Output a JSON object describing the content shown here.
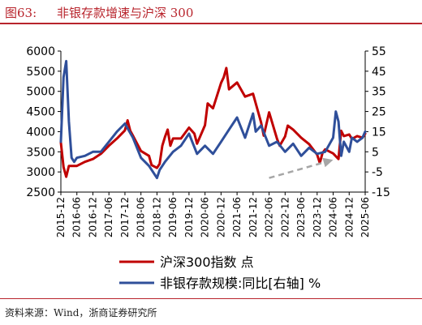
{
  "header": {
    "figure_label": "图63:",
    "title": "非银存款增速与沪深 300"
  },
  "footer": {
    "source": "资料来源：Wind，浙商证券研究所"
  },
  "colors": {
    "accent": "#b8242c",
    "series_red": "#c00000",
    "series_blue": "#2f4f9a",
    "arrow": "#a6a6a6"
  },
  "chart_data": {
    "type": "line",
    "title": "",
    "grid": false,
    "legend_position": "bottom",
    "x_tick_labels": [
      "2015-12",
      "2016-06",
      "2016-12",
      "2017-06",
      "2017-12",
      "2018-06",
      "2018-12",
      "2019-06",
      "2019-12",
      "2020-06",
      "2020-12",
      "2021-06",
      "2021-12",
      "2022-06",
      "2022-12",
      "2023-06",
      "2023-12",
      "2024-06",
      "2024-12",
      "2025-06"
    ],
    "x_range": [
      "2015-12",
      "2025-06"
    ],
    "y_left": {
      "range": [
        2500,
        6000
      ],
      "ticks": [
        2500,
        3000,
        3500,
        4000,
        4500,
        5000,
        5500,
        6000
      ]
    },
    "y_right": {
      "range": [
        -15,
        55
      ],
      "ticks": [
        -15,
        -5,
        5,
        15,
        25,
        35,
        45,
        55
      ]
    },
    "series": [
      {
        "name": "沪深300指数 点",
        "axis": "left",
        "color": "#c00000",
        "x": [
          "2015-12",
          "2016-01",
          "2016-02",
          "2016-03",
          "2016-06",
          "2016-09",
          "2016-12",
          "2017-03",
          "2017-06",
          "2017-09",
          "2017-12",
          "2018-01",
          "2018-02",
          "2018-03",
          "2018-06",
          "2018-09",
          "2018-10",
          "2018-12",
          "2019-01",
          "2019-02",
          "2019-03",
          "2019-04",
          "2019-05",
          "2019-06",
          "2019-09",
          "2019-12",
          "2020-02",
          "2020-03",
          "2020-06",
          "2020-07",
          "2020-09",
          "2020-12",
          "2021-01",
          "2021-02",
          "2021-03",
          "2021-06",
          "2021-09",
          "2021-12",
          "2022-03",
          "2022-04",
          "2022-06",
          "2022-09",
          "2022-10",
          "2022-12",
          "2023-01",
          "2023-03",
          "2023-06",
          "2023-09",
          "2023-12",
          "2024-01",
          "2024-02",
          "2024-03",
          "2024-06",
          "2024-08",
          "2024-09",
          "2024-10",
          "2024-12",
          "2025-01",
          "2025-03",
          "2025-05",
          "2025-06"
        ],
        "values": [
          3730,
          3120,
          2880,
          3150,
          3150,
          3250,
          3320,
          3450,
          3650,
          3830,
          4030,
          4280,
          4020,
          3900,
          3520,
          3400,
          3170,
          3100,
          3200,
          3650,
          3870,
          4050,
          3650,
          3830,
          3830,
          4100,
          3950,
          3700,
          4160,
          4700,
          4580,
          5210,
          5350,
          5580,
          5050,
          5220,
          4870,
          4940,
          4230,
          3900,
          4480,
          3820,
          3650,
          3880,
          4150,
          4050,
          3850,
          3690,
          3430,
          3220,
          3470,
          3560,
          3460,
          3320,
          4020,
          3890,
          3930,
          3820,
          3890,
          3850,
          3950
        ]
      },
      {
        "name": "非银存款规模:同比[右轴] %",
        "axis": "right",
        "color": "#2f4f9a",
        "x": [
          "2015-12",
          "2016-01",
          "2016-02",
          "2016-03",
          "2016-04",
          "2016-05",
          "2016-06",
          "2016-09",
          "2016-12",
          "2017-03",
          "2017-06",
          "2017-09",
          "2017-12",
          "2018-03",
          "2018-06",
          "2018-09",
          "2018-12",
          "2019-01",
          "2019-03",
          "2019-06",
          "2019-09",
          "2019-12",
          "2020-03",
          "2020-06",
          "2020-09",
          "2020-12",
          "2021-03",
          "2021-06",
          "2021-09",
          "2021-12",
          "2022-01",
          "2022-03",
          "2022-06",
          "2022-09",
          "2022-12",
          "2023-03",
          "2023-06",
          "2023-09",
          "2023-12",
          "2024-03",
          "2024-06",
          "2024-07",
          "2024-08",
          "2024-09",
          "2024-10",
          "2024-12",
          "2025-01",
          "2025-03",
          "2025-05",
          "2025-06"
        ],
        "values": [
          10,
          42,
          50,
          20,
          2,
          0,
          2,
          3,
          5,
          5,
          10,
          15,
          19,
          12,
          2,
          -2,
          -8,
          -4,
          0,
          5,
          8,
          14,
          4,
          8,
          4,
          10,
          16,
          22,
          12,
          24,
          15,
          18,
          8,
          10,
          5,
          9,
          3,
          7,
          4,
          5,
          12,
          25,
          20,
          3,
          10,
          5,
          12,
          10,
          12,
          15
        ]
      }
    ],
    "annotation": {
      "type": "dashed-arrow",
      "from": {
        "x": "2022-06",
        "y_right": -8
      },
      "to": {
        "x": "2024-06",
        "y_right": 1
      }
    }
  }
}
